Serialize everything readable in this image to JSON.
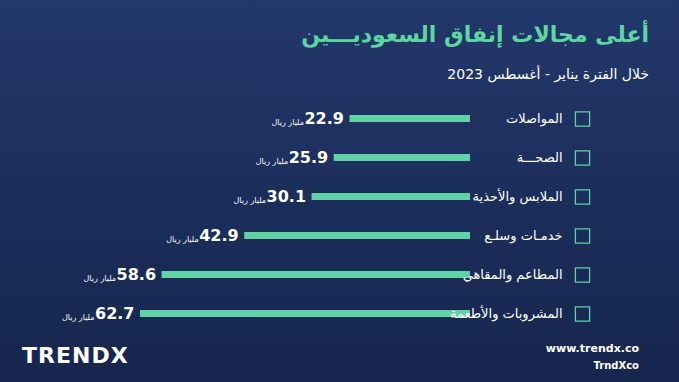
{
  "chart_data": {
    "type": "bar",
    "orientation": "horizontal",
    "title": "أعلى مجالات إنفاق السعوديـــين",
    "subtitle": "خلال الفترة يناير - أغسطس 2023",
    "categories": [
      "المواصلات",
      "الصحـــة",
      "الملابس والأحذية",
      "خدمـات وسلـع",
      "المطاعم والمقاهي",
      "المشروبات والأطعمة"
    ],
    "values": [
      22.9,
      25.9,
      30.1,
      42.9,
      58.6,
      62.7
    ],
    "unit": "مليار ريال",
    "color": "#5fd3a5",
    "xlim": [
      0,
      62.7
    ],
    "xticks": [],
    "tick_labels": false,
    "grid": false,
    "data_labels": true
  },
  "footer": {
    "brand": "TRENDX",
    "website": "www.trendx.co",
    "handle": "TrndXco"
  }
}
